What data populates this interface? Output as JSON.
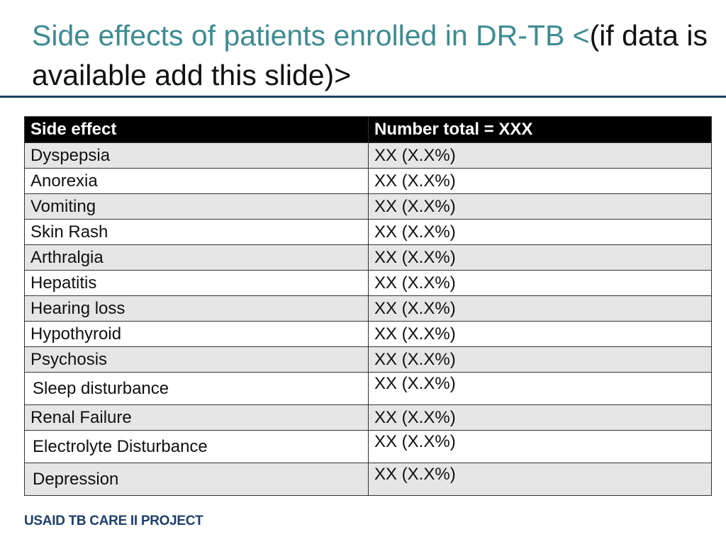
{
  "slide": {
    "title_teal": "Side effects of patients enrolled in DR-TB <",
    "title_black": "(if data is available add this slide)>"
  },
  "table": {
    "headers": [
      "Side effect",
      "Number total = XXX"
    ],
    "rows": [
      [
        "Dyspepsia",
        "XX (X.X%)"
      ],
      [
        "Anorexia",
        "XX (X.X%)"
      ],
      [
        "Vomiting",
        "XX (X.X%)"
      ],
      [
        "Skin Rash",
        "XX (X.X%)"
      ],
      [
        "Arthralgia",
        "XX (X.X%)"
      ],
      [
        "Hepatitis",
        "XX (X.X%)"
      ],
      [
        "Hearing loss",
        "XX (X.X%)"
      ],
      [
        "Hypothyroid",
        "XX (X.X%)"
      ],
      [
        "Psychosis",
        "XX (X.X%)"
      ],
      [
        "Sleep disturbance",
        "XX (X.X%)"
      ],
      [
        "Renal Failure",
        "XX (X.X%)"
      ],
      [
        "Electrolyte Disturbance",
        "XX (X.X%)"
      ],
      [
        "Depression",
        "XX (X.X%)"
      ]
    ]
  },
  "footer": {
    "text": "USAID TB CARE II PROJECT"
  },
  "colors": {
    "title_accent": "#3d8c91",
    "rule": "#1c3f5e",
    "header_bg": "#000000",
    "row_shade": "#e6e6e6",
    "footer": "#1c3f6b"
  }
}
